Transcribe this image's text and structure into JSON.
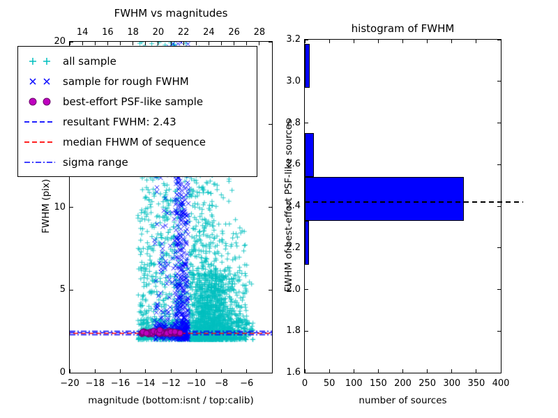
{
  "chart_data": [
    {
      "type": "scatter",
      "title": "FWHM vs magnitudes",
      "xlabel": "magnitude (bottom:isnt / top:calib)",
      "ylabel": "FWHM (pix)",
      "xlim_bottom": [
        -20,
        -4
      ],
      "xlim_top": [
        13,
        29
      ],
      "ylim": [
        0,
        20
      ],
      "seed": 7,
      "xticks_bottom": {
        "values": [
          -20,
          -18,
          -16,
          -14,
          -12,
          -10,
          -8,
          -6
        ],
        "labels": [
          "−20",
          "−18",
          "−16",
          "−14",
          "−12",
          "−10",
          "−8",
          "−6"
        ]
      },
      "xticks_top": {
        "values": [
          14,
          16,
          18,
          20,
          22,
          24,
          26,
          28
        ],
        "labels": [
          "14",
          "16",
          "18",
          "20",
          "22",
          "24",
          "26",
          "28"
        ]
      },
      "yticks": {
        "values": [
          0,
          5,
          10,
          15,
          20
        ],
        "labels": [
          "0",
          "5",
          "10",
          "15",
          "20"
        ]
      },
      "legend": {
        "position": "upper left",
        "items": [
          {
            "label": "all sample",
            "marker": "plus",
            "color": "#00bfbf"
          },
          {
            "label": "sample for rough FWHM",
            "marker": "x",
            "color": "#0000ff"
          },
          {
            "label": "best-effort PSF-like sample",
            "marker": "circle",
            "color": "#bf00bf"
          },
          {
            "label": "resultant FWHM: 2.43",
            "marker": "dashed-line",
            "color": "#0000ff"
          },
          {
            "label": "median FHWM of sequence",
            "marker": "dashed-line",
            "color": "#ff0000"
          },
          {
            "label": "sigma range",
            "marker": "dashdot-line",
            "color": "#0000ff"
          }
        ]
      },
      "resultant_fwhm": 2.43,
      "lines": [
        {
          "label": "resultant FWHM: 2.43",
          "y": 2.43,
          "color": "#0000ff",
          "style": "dashed"
        },
        {
          "label": "median FHWM of sequence",
          "y": 2.4,
          "color": "#ff0000",
          "style": "dashed",
          "dash_offset": 6
        },
        {
          "label": "sigma range low",
          "y": 2.32,
          "color": "#0000ff",
          "style": "dashdot"
        },
        {
          "label": "sigma range high",
          "y": 2.54,
          "color": "#0000ff",
          "style": "dashdot"
        }
      ],
      "series": [
        {
          "name": "all sample",
          "marker": "plus",
          "color": "#00bfbf",
          "clusters": [
            {
              "count": 650,
              "mag": {
                "type": "uniform",
                "min": -14.6,
                "max": -10.6
              },
              "fwhm": {
                "type": "pow",
                "base": 2,
                "range": 18,
                "exp": 2.6
              }
            },
            {
              "count": 160,
              "mag": {
                "type": "uniform",
                "min": -14.6,
                "max": -10.6
              },
              "fwhm": {
                "type": "uniform",
                "min": 4,
                "max": 20
              }
            },
            {
              "count": 900,
              "mag": {
                "type": "normal",
                "mean": -8.6,
                "sd": 1.1,
                "min": -10.6,
                "max": -5.3
              },
              "fwhm": {
                "type": "pow",
                "base": 2,
                "range": 4,
                "exp": 2.0
              }
            },
            {
              "count": 700,
              "mag": {
                "type": "normal",
                "mean": -9.3,
                "sd": 0.9,
                "min": -10.6,
                "max": -5.3
              },
              "fwhm": {
                "type": "pow",
                "base": 2,
                "range": 12,
                "exp": 2.8
              }
            },
            {
              "count": 320,
              "mag": {
                "type": "uniform",
                "min": -10.6,
                "max": -6.0
              },
              "fwhm": {
                "type": "pow",
                "base": 2,
                "range": 7,
                "exp": 2.2
              }
            },
            {
              "count": 80,
              "mag": {
                "type": "uniform",
                "min": -12.6,
                "max": -8.8
              },
              "fwhm": {
                "type": "uniform",
                "min": 15,
                "max": 20
              }
            },
            {
              "count": 350,
              "mag": {
                "type": "uniform",
                "min": -14.6,
                "max": -5.4
              },
              "fwhm": {
                "type": "uniform",
                "min": 2.0,
                "max": 3.2
              }
            }
          ]
        },
        {
          "name": "sample for rough FWHM",
          "marker": "x",
          "color": "#0000ff",
          "clusters": [
            {
              "count": 320,
              "mag": {
                "type": "uniform",
                "min": -11.7,
                "max": -10.6
              },
              "fwhm": {
                "type": "pow",
                "base": 2,
                "range": 11,
                "exp": 1.6
              }
            },
            {
              "count": 200,
              "mag": {
                "type": "uniform",
                "min": -13.3,
                "max": -10.6
              },
              "fwhm": {
                "type": "pow",
                "base": 2,
                "range": 18,
                "exp": 2.0
              }
            },
            {
              "count": 140,
              "mag": {
                "type": "uniform",
                "min": -13.5,
                "max": -10.7
              },
              "fwhm": {
                "type": "uniform",
                "min": 2.1,
                "max": 3.0
              }
            }
          ]
        },
        {
          "name": "best-effort PSF-like sample",
          "marker": "circle",
          "color": "#bf00bf",
          "edge": "#6a006a",
          "clusters": [
            {
              "count": 85,
              "mag": {
                "type": "uniform",
                "min": -14.35,
                "max": -11.15
              },
              "fwhm": {
                "type": "normal",
                "mean": 2.42,
                "sd": 0.05
              }
            }
          ]
        }
      ]
    },
    {
      "type": "bar",
      "orientation": "horizontal",
      "title": "histogram of FWHM",
      "xlabel": "number of sources",
      "ylabel": "FWHM of best-effort PSF-like sources",
      "xlim": [
        0,
        400
      ],
      "ylim": [
        1.6,
        3.2
      ],
      "bar_color": "#0000ff",
      "xticks": {
        "values": [
          0,
          50,
          100,
          150,
          200,
          250,
          300,
          350,
          400
        ],
        "labels": [
          "0",
          "50",
          "100",
          "150",
          "200",
          "250",
          "300",
          "350",
          "400"
        ]
      },
      "yticks": {
        "values": [
          1.6,
          1.8,
          2.0,
          2.2,
          2.4,
          2.6,
          2.8,
          3.0,
          3.2
        ],
        "labels": [
          "1.6",
          "1.8",
          "2.0",
          "2.2",
          "2.4",
          "2.6",
          "2.8",
          "3.0",
          "3.2"
        ]
      },
      "bins": [
        {
          "from": 2.12,
          "to": 2.33,
          "count": 8
        },
        {
          "from": 2.33,
          "to": 2.54,
          "count": 325
        },
        {
          "from": 2.54,
          "to": 2.75,
          "count": 18
        },
        {
          "from": 2.75,
          "to": 2.97,
          "count": 0
        },
        {
          "from": 2.97,
          "to": 3.18,
          "count": 10
        }
      ],
      "marker_line": {
        "y": 2.42,
        "color": "#000000",
        "style": "dashed"
      }
    }
  ]
}
